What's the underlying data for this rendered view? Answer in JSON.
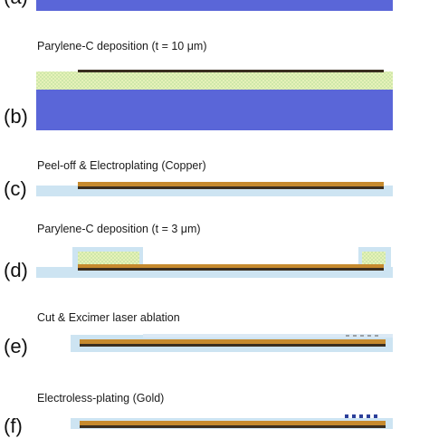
{
  "colors": {
    "silicon": "#5a66d8",
    "parylene": "#cde4f2",
    "parylene_pattern_base": "#e6f2b8",
    "parylene_pattern_dot": "#bfe0a0",
    "metal_dark": "#3a2e20",
    "copper": "#c68a2e",
    "gold_dots": "#2b3f9a",
    "ablation_dots": "#9aa0a6"
  },
  "panels": [
    {
      "label": "(a)",
      "title": ""
    },
    {
      "label": "(b)",
      "title": "Parylene-C deposition (t = 10 μm)"
    },
    {
      "label": "(c)",
      "title": "Peel-off & Electroplating (Copper)"
    },
    {
      "label": "(d)",
      "title": "Parylene-C deposition (t = 3 μm)"
    },
    {
      "label": "(e)",
      "title": "Cut & Excimer laser ablation"
    },
    {
      "label": "(f)",
      "title": "Electroless-plating (Gold)"
    }
  ]
}
